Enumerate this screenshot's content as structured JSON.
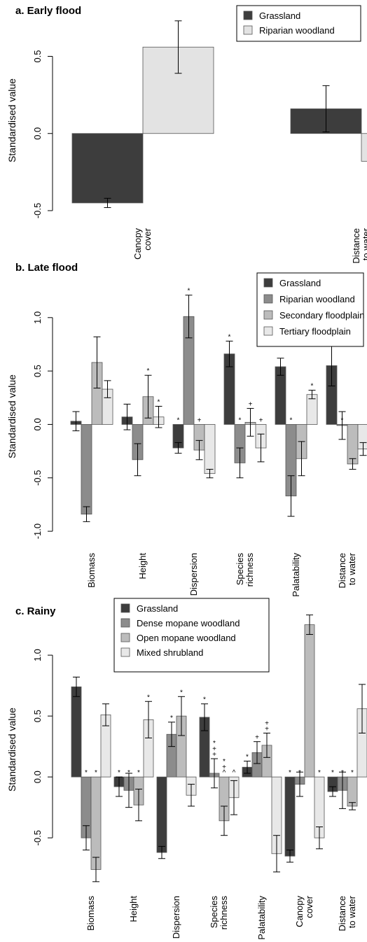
{
  "chart_data": [
    {
      "type": "bar",
      "title": "a. Early flood",
      "ylabel": "Standardised value",
      "ylim": [
        -0.55,
        0.72
      ],
      "yticks": [
        -0.5,
        0.0,
        0.5
      ],
      "ytick_labels": [
        "-0.5",
        "0.0",
        "0.5"
      ],
      "legend_position": "top-right",
      "categories": [
        "Canopy\ncover",
        "Distance\nto water"
      ],
      "series": [
        {
          "name": "Grassland",
          "color": "#3d3d3d",
          "values": [
            -0.45,
            0.16
          ],
          "err": [
            0.03,
            0.15
          ],
          "sig": [
            "",
            ""
          ]
        },
        {
          "name": "Riparian woodland",
          "color": "#e3e3e3",
          "values": [
            0.56,
            -0.18
          ],
          "err": [
            0.17,
            0.12
          ],
          "sig": [
            "",
            ""
          ]
        }
      ]
    },
    {
      "type": "bar",
      "title": "b. Late flood",
      "ylabel": "Standardised value",
      "ylim": [
        -1.15,
        1.3
      ],
      "yticks": [
        -1.0,
        -0.5,
        0.0,
        0.5,
        1.0
      ],
      "ytick_labels": [
        "-1.0",
        "-0.5",
        "0.0",
        "0.5",
        "1.0"
      ],
      "legend_position": "top-right",
      "categories": [
        "Biomass",
        "Height",
        "Dispersion",
        "Species\nrichness",
        "Palatability",
        "Distance\nto water"
      ],
      "series": [
        {
          "name": "Grassland",
          "color": "#3d3d3d",
          "values": [
            0.03,
            0.07,
            -0.22,
            0.66,
            0.54,
            0.55
          ],
          "err": [
            0.09,
            0.12,
            0.05,
            0.12,
            0.08,
            0.19
          ],
          "sig": [
            "",
            "",
            "*",
            "*",
            "",
            "*"
          ]
        },
        {
          "name": "Riparian woodland",
          "color": "#8c8c8c",
          "values": [
            -0.84,
            -0.33,
            1.01,
            -0.36,
            -0.67,
            -0.01
          ],
          "err": [
            0.07,
            0.15,
            0.2,
            0.14,
            0.19,
            0.13
          ],
          "sig": [
            "",
            "",
            "*",
            "*",
            "*",
            "*"
          ]
        },
        {
          "name": "Secondary floodplain",
          "color": "#bcbcbc",
          "values": [
            0.58,
            0.26,
            -0.24,
            0.02,
            -0.32,
            -0.37
          ],
          "err": [
            0.24,
            0.2,
            0.09,
            0.13,
            0.16,
            0.05
          ],
          "sig": [
            "",
            "*",
            "+",
            "+",
            "",
            ""
          ]
        },
        {
          "name": "Tertiary floodplain",
          "color": "#e8e8e8",
          "values": [
            0.33,
            0.07,
            -0.46,
            -0.22,
            0.28,
            -0.23
          ],
          "err": [
            0.08,
            0.1,
            0.04,
            0.13,
            0.04,
            0.06
          ],
          "sig": [
            "",
            "*",
            "",
            "+",
            "*",
            ""
          ]
        }
      ]
    },
    {
      "type": "bar",
      "title": "c. Rainy",
      "ylabel": "Standardised value",
      "ylim": [
        -0.93,
        1.38
      ],
      "yticks": [
        -0.5,
        0.0,
        0.5,
        1.0
      ],
      "ytick_labels": [
        "-0.5",
        "0.0",
        "0.5",
        "1.0"
      ],
      "legend_position": "top-left",
      "categories": [
        "Biomass",
        "Height",
        "Dispersion",
        "Species\nrichness",
        "Palatability",
        "Canopy\ncover",
        "Distance\nto water"
      ],
      "series": [
        {
          "name": "Grassland",
          "color": "#3d3d3d",
          "values": [
            0.74,
            -0.08,
            -0.62,
            0.49,
            0.08,
            -0.65,
            -0.12
          ],
          "err": [
            0.08,
            0.08,
            0.05,
            0.11,
            0.05,
            0.05,
            0.04
          ],
          "sig": [
            "",
            "*",
            "",
            "*",
            "*",
            "*",
            "*"
          ]
        },
        {
          "name": "Dense mopane woodland",
          "color": "#8c8c8c",
          "values": [
            -0.5,
            -0.11,
            0.35,
            0.03,
            0.2,
            -0.06,
            -0.11
          ],
          "err": [
            0.1,
            0.14,
            0.1,
            0.12,
            0.09,
            0.1,
            0.15
          ],
          "sig": [
            "*",
            "*",
            "*",
            "*\n+\n+",
            "+",
            "*",
            "*"
          ]
        },
        {
          "name": "Open mopane woodland",
          "color": "#bcbcbc",
          "values": [
            -0.76,
            -0.23,
            0.5,
            -0.36,
            0.26,
            1.25,
            -0.24
          ],
          "err": [
            0.1,
            0.13,
            0.16,
            0.12,
            0.1,
            0.08,
            0.03
          ],
          "sig": [
            "*",
            "*",
            "*",
            "*\n+\n^",
            "+\n+",
            "",
            "*"
          ]
        },
        {
          "name": "Mixed shrubland",
          "color": "#e8e8e8",
          "values": [
            0.51,
            0.47,
            -0.15,
            -0.17,
            -0.63,
            -0.5,
            0.56
          ],
          "err": [
            0.09,
            0.15,
            0.09,
            0.14,
            0.15,
            0.09,
            0.2
          ],
          "sig": [
            "",
            "*",
            "",
            "^",
            "",
            "*",
            ""
          ]
        }
      ]
    }
  ]
}
